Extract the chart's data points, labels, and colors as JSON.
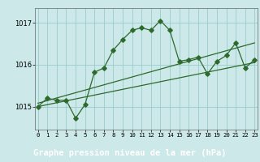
{
  "hours": [
    0,
    1,
    2,
    3,
    4,
    5,
    6,
    7,
    8,
    9,
    10,
    11,
    12,
    13,
    14,
    15,
    16,
    17,
    18,
    19,
    20,
    21,
    22,
    23
  ],
  "pressure": [
    1015.0,
    1015.2,
    1015.15,
    1015.15,
    1014.72,
    1015.05,
    1015.82,
    1015.92,
    1016.35,
    1016.6,
    1016.82,
    1016.88,
    1016.82,
    1017.05,
    1016.82,
    1016.08,
    1016.12,
    1016.18,
    1015.78,
    1016.08,
    1016.22,
    1016.52,
    1015.92,
    1016.12
  ],
  "trend1_x": [
    0,
    23
  ],
  "trend1_y": [
    1015.0,
    1016.05
  ],
  "trend2_x": [
    0,
    23
  ],
  "trend2_y": [
    1015.08,
    1016.52
  ],
  "line_color": "#2d6a2d",
  "bg_color": "#cce8e8",
  "grid_color": "#99cccc",
  "bottom_label_bg": "#336633",
  "bottom_label_fg": "#ffffff",
  "title": "Graphe pression niveau de la mer (hPa)",
  "xlim": [
    -0.3,
    23.3
  ],
  "ylim": [
    1014.45,
    1017.35
  ],
  "yticks": [
    1015,
    1016,
    1017
  ],
  "xticks": [
    0,
    1,
    2,
    3,
    4,
    5,
    6,
    7,
    8,
    9,
    10,
    11,
    12,
    13,
    14,
    15,
    16,
    17,
    18,
    19,
    20,
    21,
    22,
    23
  ],
  "title_fontsize": 7.5,
  "tick_fontsize": 6.0,
  "marker_size": 2.8
}
